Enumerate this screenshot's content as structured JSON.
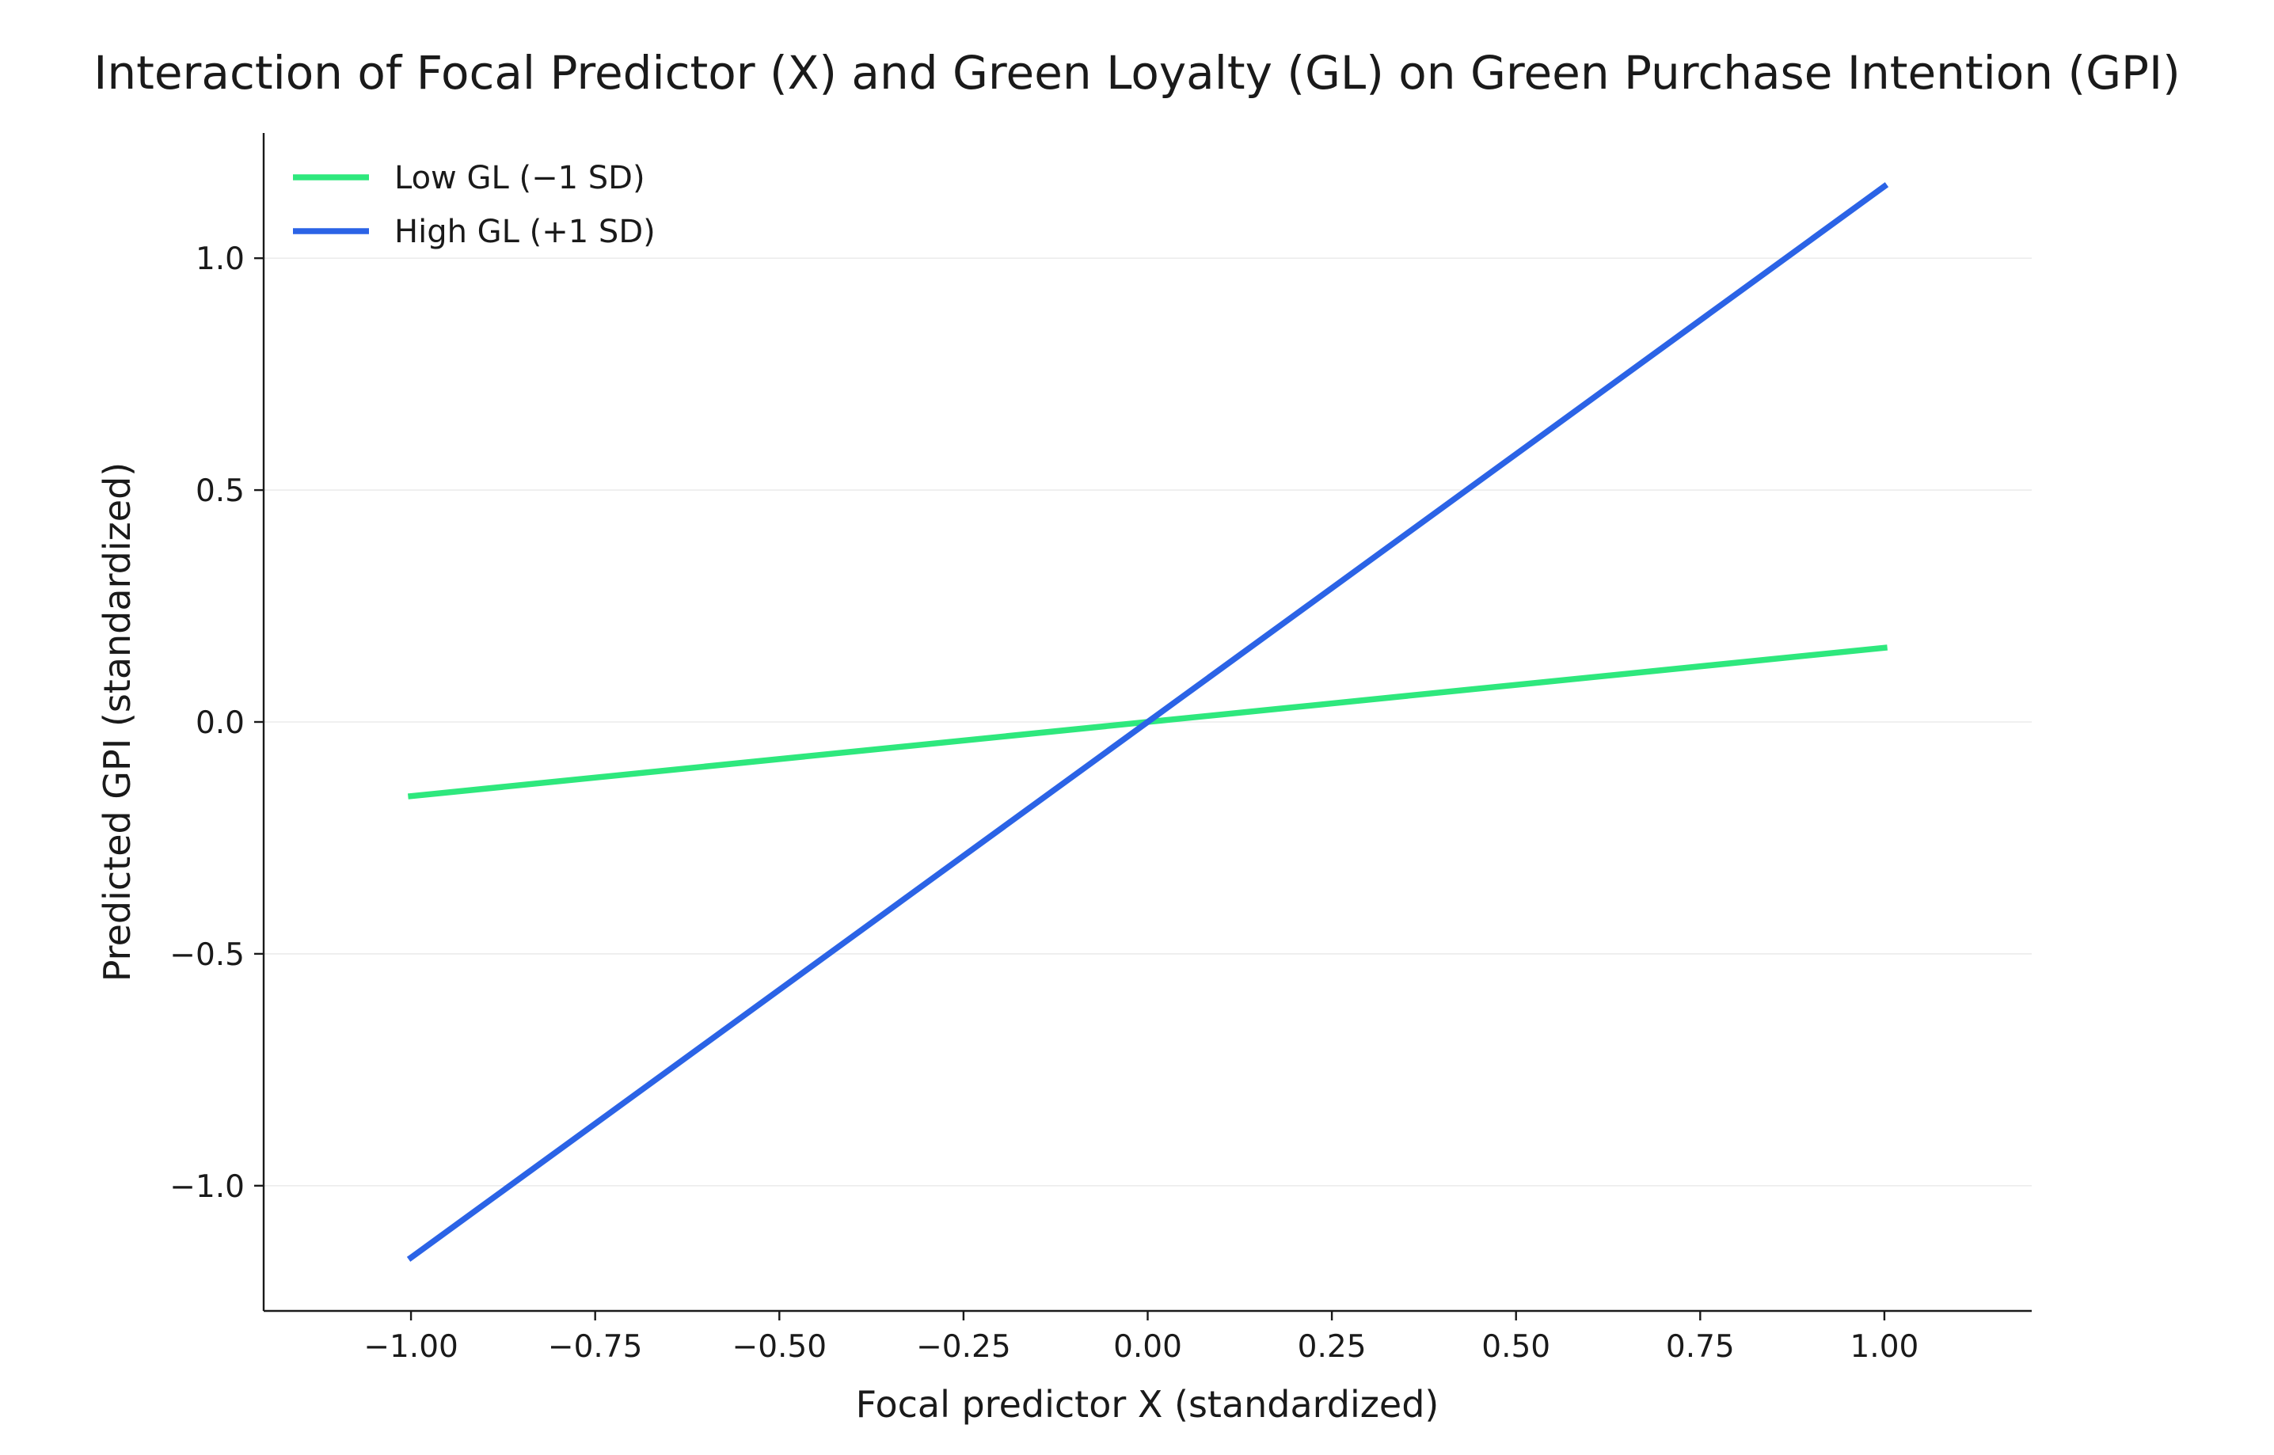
{
  "chart_data": {
    "type": "line",
    "title": "Interaction of Focal Predictor (X) and Green Loyalty (GL) on Green Purchase Intention (GPI)",
    "xlabel": "Focal predictor X (standardized)",
    "ylabel": "Predicted GPI (standardized)",
    "xlim": [
      -1.2,
      1.2
    ],
    "ylim": [
      -1.27,
      1.27
    ],
    "xticks": [
      -1.0,
      -0.75,
      -0.5,
      -0.25,
      0.0,
      0.25,
      0.5,
      0.75,
      1.0
    ],
    "xtick_labels": [
      "−1.00",
      "−0.75",
      "−0.50",
      "−0.25",
      "0.00",
      "0.25",
      "0.50",
      "0.75",
      "1.00"
    ],
    "yticks": [
      -1.0,
      -0.5,
      0.0,
      0.5,
      1.0
    ],
    "ytick_labels": [
      "−1.0",
      "−0.5",
      "0.0",
      "0.5",
      "1.0"
    ],
    "grid": "horizontal",
    "legend_position": "top-left",
    "series": [
      {
        "name": "Low GL (−1 SD)",
        "color": "#2ee87d",
        "x": [
          -1.0,
          1.0
        ],
        "y": [
          -0.16,
          0.16
        ]
      },
      {
        "name": "High GL (+1 SD)",
        "color": "#2b63e6",
        "x": [
          -1.0,
          1.0
        ],
        "y": [
          -1.155,
          1.155
        ]
      }
    ]
  }
}
